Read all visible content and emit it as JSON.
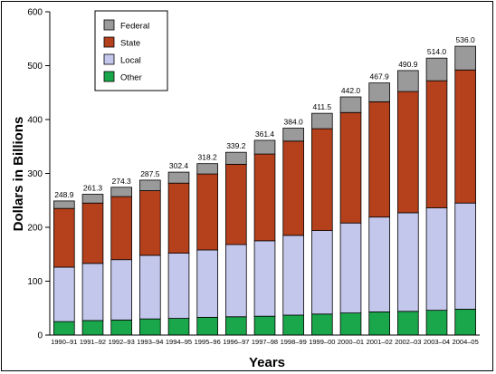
{
  "chart_data": {
    "type": "bar",
    "stacked": true,
    "title": "",
    "xlabel": "Years",
    "ylabel": "Dollars in Billions",
    "ylim": [
      0,
      600
    ],
    "yticks": [
      "0",
      "100",
      "200",
      "300",
      "400",
      "500",
      "600"
    ],
    "grid": false,
    "legend_position": "top-left",
    "categories": [
      "1990–91",
      "1991–92",
      "1992–93",
      "1993–94",
      "1994–95",
      "1995–96",
      "1996–97",
      "1997–98",
      "1998–99",
      "1999–00",
      "2000–01",
      "2001–02",
      "2002–03",
      "2003–04",
      "2004–05"
    ],
    "totals": [
      "248.9",
      "261.3",
      "274.3",
      "287.5",
      "302.4",
      "318.2",
      "339.2",
      "361.4",
      "384.0",
      "411.5",
      "442.0",
      "467.9",
      "490.9",
      "514.0",
      "536.0"
    ],
    "series": [
      {
        "name": "Other",
        "color": "#1aa64a",
        "values": [
          25,
          27,
          28,
          30,
          31,
          33,
          34,
          35,
          37,
          39,
          41,
          43,
          44,
          46,
          48
        ]
      },
      {
        "name": "Local",
        "color": "#c4c7ec",
        "values": [
          101,
          106,
          112,
          118,
          121,
          125,
          134,
          140,
          148,
          155,
          167,
          176,
          183,
          190,
          197
        ]
      },
      {
        "name": "State",
        "color": "#b5401c",
        "values": [
          109,
          112,
          117,
          120,
          130,
          141,
          149,
          161,
          175,
          189,
          205,
          214,
          225,
          236,
          247
        ]
      },
      {
        "name": "Federal",
        "color": "#9a9a9a",
        "values": [
          13.9,
          16.3,
          17.3,
          19.5,
          20.4,
          19.2,
          22.2,
          25.4,
          24.0,
          28.5,
          29.0,
          34.9,
          38.9,
          42.0,
          44.0
        ]
      }
    ],
    "legend_order": [
      "Federal",
      "State",
      "Local",
      "Other"
    ]
  }
}
